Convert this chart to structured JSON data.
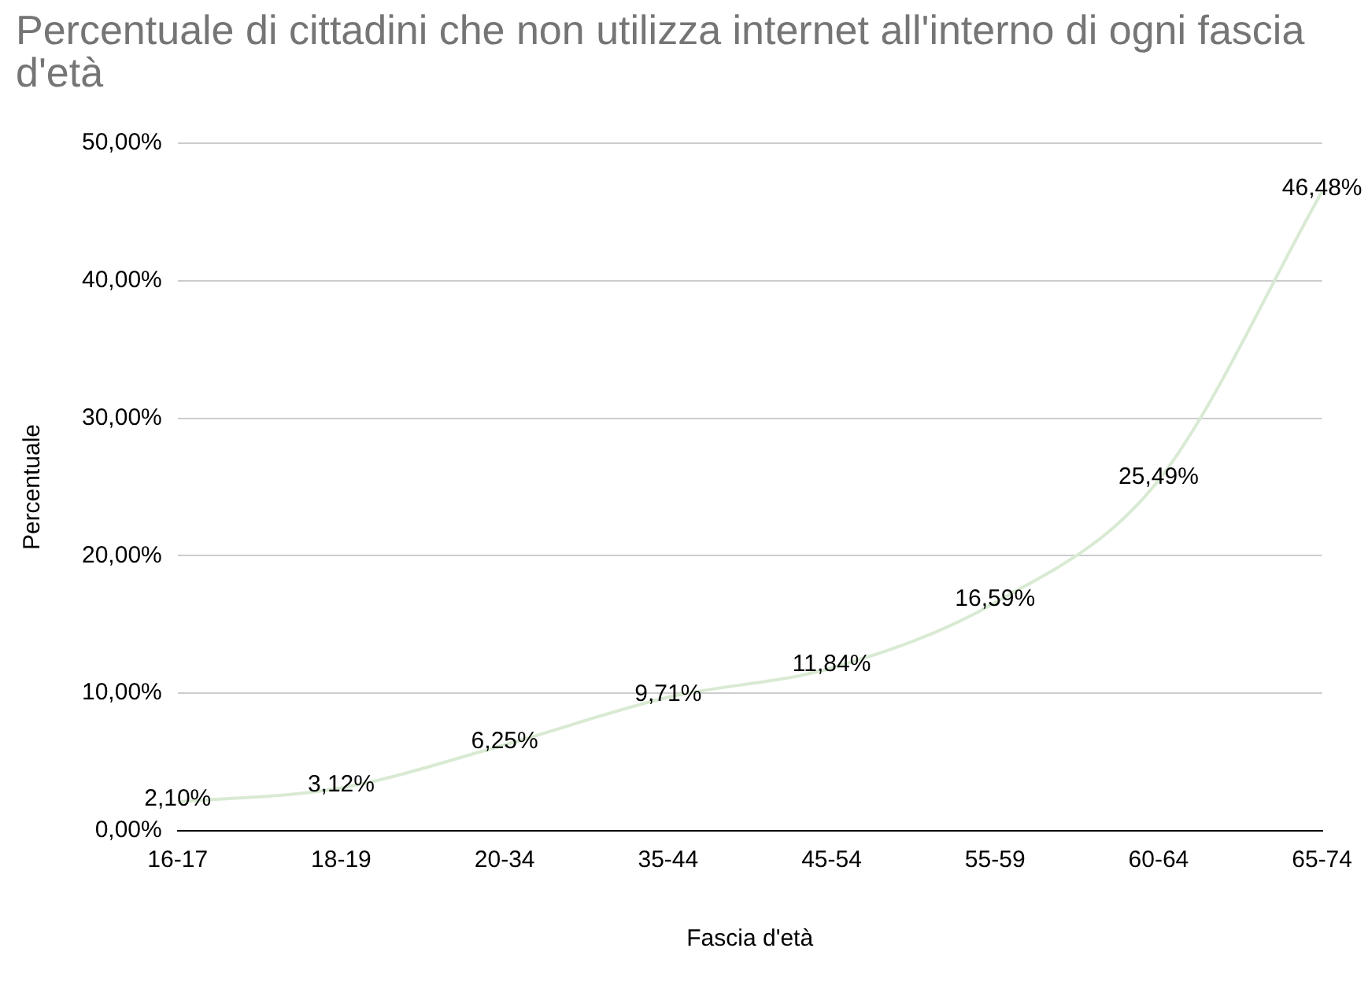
{
  "chart_data": {
    "type": "line",
    "title": "Percentuale di cittadini che non utilizza internet all'interno di ogni fascia d'età",
    "xlabel": "Fascia d'età",
    "ylabel": "Percentuale",
    "categories": [
      "16-17",
      "18-19",
      "20-34",
      "35-44",
      "45-54",
      "55-59",
      "60-64",
      "65-74"
    ],
    "series": [
      {
        "color": "#d9ead3",
        "values": [
          2.1,
          3.12,
          6.25,
          9.71,
          11.84,
          16.59,
          25.49,
          46.48
        ],
        "value_labels": [
          "2,10%",
          "3,12%",
          "6,25%",
          "9,71%",
          "11,84%",
          "16,59%",
          "25,49%",
          "46,48%"
        ]
      }
    ],
    "ylim": [
      0,
      50
    ],
    "yticks": [
      {
        "value": 0,
        "label": "0,00%"
      },
      {
        "value": 10,
        "label": "10,00%"
      },
      {
        "value": 20,
        "label": "20,00%"
      },
      {
        "value": 30,
        "label": "30,00%"
      },
      {
        "value": 40,
        "label": "40,00%"
      },
      {
        "value": 50,
        "label": "50,00%"
      }
    ],
    "grid": "y",
    "legend": false,
    "marker": "none",
    "line_style": "solid"
  }
}
